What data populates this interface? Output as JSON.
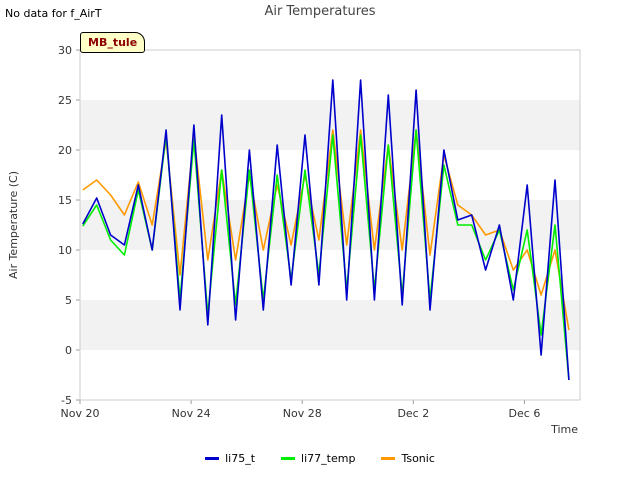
{
  "header": {
    "note": "No data for f_AirT"
  },
  "site_label": "MB_tule",
  "chart_data": {
    "type": "line",
    "title": "Air Temperatures",
    "xlabel": "Time",
    "ylabel": "Air Temperature (C)",
    "ylim": [
      -5,
      30
    ],
    "yticks": [
      -5,
      0,
      5,
      10,
      15,
      20,
      25,
      30
    ],
    "xlim": [
      "Nov 20",
      "Dec 8"
    ],
    "xticks": [
      "Nov 20",
      "Nov 24",
      "Nov 28",
      "Dec 2",
      "Dec 6"
    ],
    "legend_position": "bottom-center",
    "grid": "alternating horizontal bands",
    "x": [
      "Nov 20 00:00",
      "Nov 20 12:00",
      "Nov 21 00:00",
      "Nov 21 12:00",
      "Nov 22 00:00",
      "Nov 22 12:00",
      "Nov 23 00:00",
      "Nov 23 12:00",
      "Nov 24 00:00",
      "Nov 24 12:00",
      "Nov 25 00:00",
      "Nov 25 12:00",
      "Nov 26 00:00",
      "Nov 26 12:00",
      "Nov 27 00:00",
      "Nov 27 12:00",
      "Nov 28 00:00",
      "Nov 28 12:00",
      "Nov 29 00:00",
      "Nov 29 12:00",
      "Nov 30 00:00",
      "Nov 30 12:00",
      "Dec 1 00:00",
      "Dec 1 12:00",
      "Dec 2 00:00",
      "Dec 2 12:00",
      "Dec 3 00:00",
      "Dec 3 12:00",
      "Dec 4 00:00",
      "Dec 4 12:00",
      "Dec 5 00:00",
      "Dec 5 12:00",
      "Dec 6 00:00",
      "Dec 6 12:00",
      "Dec 7 00:00",
      "Dec 7 12:00"
    ],
    "series": [
      {
        "name": "li75_t",
        "color": "#0000cc",
        "values": [
          12.6,
          15.2,
          11.5,
          10.5,
          16.5,
          10.0,
          22.0,
          4.0,
          22.5,
          2.5,
          23.5,
          3.0,
          20.0,
          4.0,
          20.5,
          6.5,
          21.5,
          6.5,
          27.0,
          5.0,
          27.0,
          5.0,
          25.5,
          4.5,
          26.0,
          4.0,
          20.0,
          13.0,
          13.5,
          8.0,
          12.5,
          5.0,
          16.5,
          -0.5,
          17.0,
          -3.0
        ]
      },
      {
        "name": "li77_temp",
        "color": "#00ee00",
        "values": [
          12.4,
          14.5,
          11.0,
          9.5,
          16.0,
          10.0,
          21.5,
          5.0,
          21.0,
          3.5,
          18.0,
          4.5,
          18.0,
          5.0,
          17.5,
          7.0,
          18.0,
          7.5,
          21.5,
          6.0,
          21.5,
          6.0,
          20.5,
          5.5,
          22.0,
          5.0,
          18.5,
          12.5,
          12.5,
          9.0,
          12.0,
          6.0,
          12.0,
          1.5,
          12.5,
          -3.0
        ]
      },
      {
        "name": "Tsonic",
        "color": "#ff9900",
        "values": [
          16.0,
          17.0,
          15.5,
          13.5,
          16.8,
          12.5,
          21.0,
          7.5,
          21.5,
          9.0,
          18.0,
          9.0,
          17.5,
          10.0,
          16.5,
          10.5,
          17.5,
          11.0,
          22.0,
          10.5,
          22.0,
          10.0,
          20.5,
          10.0,
          22.0,
          9.5,
          19.5,
          14.5,
          13.5,
          11.5,
          12.0,
          8.0,
          10.0,
          5.5,
          10.0,
          2.0
        ]
      }
    ]
  }
}
